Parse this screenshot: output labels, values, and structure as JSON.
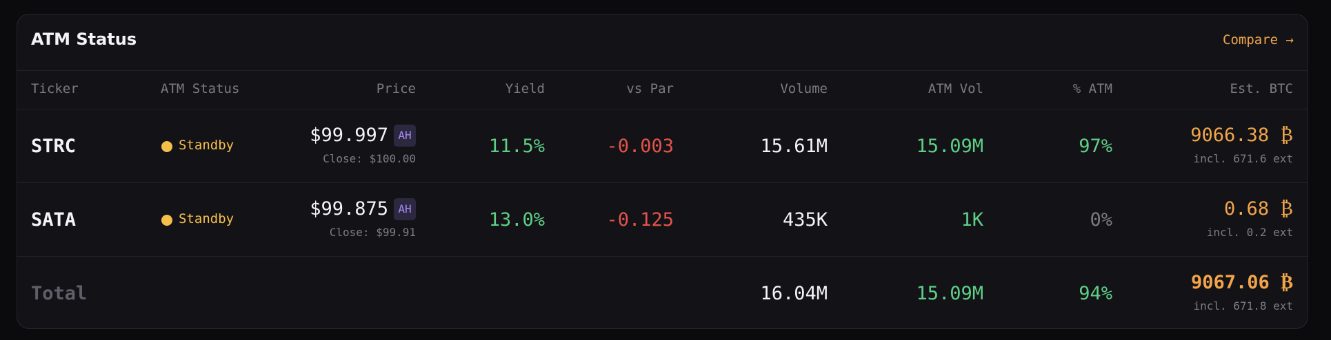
{
  "header": {
    "title": "ATM Status",
    "action": "Compare →"
  },
  "table": {
    "columns": [
      "Ticker",
      "ATM Status",
      "Price",
      "Yield",
      "vs Par",
      "Volume",
      "ATM Vol",
      "% ATM",
      "Est. BTC"
    ],
    "rows": [
      {
        "ticker": "STRC",
        "status": "Standby",
        "price": "$99.997",
        "badge": "AH",
        "close": "Close: $100.00",
        "yield": "11.5%",
        "vs_par": "-0.003",
        "volume": "15.61M",
        "atm_vol": "15.09M",
        "pct_atm": "97%",
        "est_btc": "9066.38 ₿",
        "btc_note": "incl. 671.6 ext"
      },
      {
        "ticker": "SATA",
        "status": "Standby",
        "price": "$99.875",
        "badge": "AH",
        "close": "Close: $99.91",
        "yield": "13.0%",
        "vs_par": "-0.125",
        "volume": "435K",
        "atm_vol": "1K",
        "pct_atm": "0%",
        "est_btc": "0.68 ₿",
        "btc_note": "incl. 0.2 ext"
      }
    ],
    "total": {
      "label": "Total",
      "volume": "16.04M",
      "atm_vol": "15.09M",
      "pct_atm": "94%",
      "est_btc": "9067.06 ₿",
      "btc_note": "incl. 671.8 ext"
    }
  }
}
